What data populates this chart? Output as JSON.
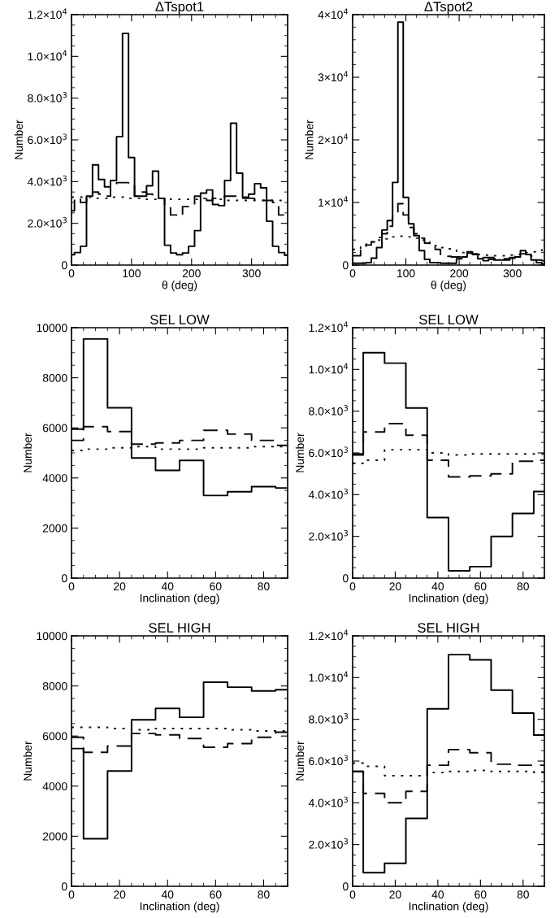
{
  "chart_data": [
    {
      "type": "histogram",
      "title": "ΔTspot1",
      "xlabel": "θ (deg)",
      "ylabel": "Number",
      "bins": [
        0,
        5,
        15,
        25,
        35,
        45,
        55,
        65,
        75,
        85,
        95,
        105,
        115,
        125,
        135,
        145,
        155,
        165,
        175,
        185,
        195,
        205,
        215,
        225,
        235,
        245,
        255,
        265,
        275,
        285,
        295,
        305,
        315,
        325,
        335,
        345,
        355,
        360
      ],
      "series": [
        {
          "color": "#000000",
          "line_style": "solid",
          "values": [
            500,
            600,
            900,
            3300,
            4800,
            4100,
            3750,
            4050,
            6150,
            11100,
            5150,
            3300,
            3300,
            3800,
            4500,
            3200,
            950,
            580,
            500,
            580,
            900,
            1650,
            3450,
            3600,
            2900,
            2850,
            4050,
            6800,
            4400,
            3250,
            3400,
            3900,
            3700,
            2100,
            900,
            600,
            470
          ]
        },
        {
          "color": "#0a0a0a",
          "line_style": "dashed",
          "values": [
            2600,
            3200,
            3000,
            3300,
            3500,
            3400,
            3300,
            3900,
            3950,
            3950,
            3900,
            3300,
            3500,
            3400,
            3300,
            3200,
            2900,
            2400,
            2350,
            2800,
            2900,
            3300,
            3300,
            3100,
            3200,
            3200,
            3300,
            3300,
            3200,
            3200,
            3200,
            3100,
            3100,
            3100,
            3000,
            2400,
            2300
          ]
        },
        {
          "color": "#141414",
          "line_style": "dotted",
          "values": [
            3250,
            3250,
            3250,
            3250,
            3200,
            3200,
            3200,
            3250,
            3250,
            3250,
            3200,
            3200,
            3200,
            3150,
            3150,
            3200,
            3200,
            3150,
            3150,
            3150,
            3150,
            3150,
            3200,
            3200,
            3150,
            3150,
            3100,
            3100,
            3100,
            3100,
            3100,
            3100,
            3100,
            3100,
            3100,
            3100,
            3100
          ]
        }
      ],
      "xlim": [
        0,
        360
      ],
      "xticks": [
        0,
        100,
        200,
        300
      ],
      "ylim": [
        0,
        12000
      ],
      "yticks": [
        0,
        {
          "value": 2000,
          "label": "2.0×10$^{3}$"
        },
        {
          "value": 4000,
          "label": "4.0×10$^{3}$"
        },
        {
          "value": 6000,
          "label": "6.0×10$^{3}$"
        },
        {
          "value": 8000,
          "label": "8.0×10$^{3}$"
        },
        {
          "value": 10000,
          "label": "1.0×10$^{4}$"
        },
        {
          "value": 12000,
          "label": "1.2×10$^{4}$"
        }
      ]
    },
    {
      "type": "histogram",
      "title": "ΔTspot2",
      "xlabel": "θ (deg)",
      "ylabel": "Number",
      "bins": [
        0,
        5,
        15,
        25,
        35,
        45,
        55,
        65,
        75,
        85,
        95,
        105,
        115,
        125,
        135,
        145,
        155,
        165,
        175,
        185,
        195,
        205,
        215,
        225,
        235,
        245,
        255,
        265,
        275,
        285,
        295,
        305,
        315,
        325,
        335,
        345,
        355,
        360
      ],
      "series": [
        {
          "color": "#000000",
          "line_style": "solid",
          "values": [
            300,
            300,
            300,
            400,
            1100,
            2800,
            5600,
            7100,
            13200,
            38800,
            10800,
            6600,
            4700,
            2300,
            900,
            400,
            400,
            300,
            300,
            300,
            1000,
            1300,
            2100,
            1700,
            1000,
            700,
            900,
            800,
            800,
            800,
            1100,
            1300,
            2300,
            1700,
            800,
            400,
            200
          ]
        },
        {
          "color": "#0a0a0a",
          "line_style": "dashed",
          "values": [
            1500,
            1500,
            2500,
            3200,
            3700,
            4400,
            5000,
            6200,
            8300,
            9800,
            8000,
            6000,
            5000,
            4300,
            3500,
            2900,
            2500,
            1500,
            1400,
            1300,
            1300,
            1600,
            1900,
            1800,
            1500,
            1200,
            1200,
            1000,
            1000,
            1000,
            1200,
            1400,
            1800,
            1700,
            1400,
            800,
            700
          ]
        },
        {
          "color": "#141414",
          "line_style": "dotted",
          "values": [
            2500,
            2600,
            2900,
            3300,
            3700,
            4000,
            4200,
            4400,
            4500,
            4600,
            4500,
            4500,
            4300,
            4000,
            3700,
            3400,
            3100,
            2800,
            2600,
            2400,
            2200,
            2000,
            1900,
            1800,
            1700,
            1600,
            1500,
            1500,
            1500,
            1500,
            1600,
            1700,
            1800,
            2000,
            2100,
            2300,
            2400
          ]
        }
      ],
      "xlim": [
        0,
        360
      ],
      "xticks": [
        0,
        100,
        200,
        300
      ],
      "ylim": [
        0,
        40000
      ],
      "yticks": [
        0,
        {
          "value": 10000,
          "label": "1×10$^{4}$"
        },
        {
          "value": 20000,
          "label": "2×10$^{4}$"
        },
        {
          "value": 30000,
          "label": "3×10$^{4}$"
        },
        {
          "value": 40000,
          "label": "4×10$^{4}$"
        }
      ]
    },
    {
      "type": "histogram",
      "title": "SEL LOW",
      "xlabel": "Inclination (deg)",
      "ylabel": "Number",
      "bins": [
        0,
        5,
        15,
        25,
        35,
        45,
        55,
        65,
        75,
        85,
        90
      ],
      "series": [
        {
          "color": "#000000",
          "line_style": "solid",
          "values": [
            5950,
            9550,
            6800,
            4800,
            4300,
            4700,
            3300,
            3450,
            3650,
            3600
          ]
        },
        {
          "color": "#0a0a0a",
          "line_style": "dashed",
          "values": [
            5500,
            6050,
            5850,
            5350,
            5400,
            5500,
            5900,
            5750,
            5500,
            5300
          ]
        },
        {
          "color": "#141414",
          "line_style": "dotted",
          "values": [
            5100,
            5150,
            5200,
            5250,
            5150,
            5150,
            5200,
            5200,
            5250,
            5250
          ]
        }
      ],
      "xlim": [
        0,
        90
      ],
      "xticks": [
        0,
        20,
        40,
        60,
        80
      ],
      "ylim": [
        0,
        10000
      ],
      "yticks": [
        0,
        2000,
        4000,
        6000,
        8000,
        10000
      ]
    },
    {
      "type": "histogram",
      "title": "SEL LOW",
      "xlabel": "Inclination (deg)",
      "ylabel": "Number",
      "bins": [
        0,
        5,
        15,
        25,
        35,
        45,
        55,
        65,
        75,
        85,
        90
      ],
      "series": [
        {
          "color": "#000000",
          "line_style": "solid",
          "values": [
            5900,
            10800,
            10300,
            8150,
            2900,
            350,
            550,
            2000,
            3100,
            4150
          ]
        },
        {
          "color": "#0a0a0a",
          "line_style": "dashed",
          "values": [
            5950,
            7000,
            7400,
            6850,
            5650,
            4850,
            4900,
            5000,
            5600,
            5650
          ]
        },
        {
          "color": "#141414",
          "line_style": "dotted",
          "values": [
            5500,
            5650,
            6150,
            6150,
            6000,
            5900,
            5950,
            5950,
            5950,
            5950
          ]
        }
      ],
      "xlim": [
        0,
        90
      ],
      "xticks": [
        0,
        20,
        40,
        60,
        80
      ],
      "ylim": [
        0,
        12000
      ],
      "yticks": [
        0,
        {
          "value": 2000,
          "label": "2.0×10$^{3}$"
        },
        {
          "value": 4000,
          "label": "4.0×10$^{3}$"
        },
        {
          "value": 6000,
          "label": "6.0×10$^{3}$"
        },
        {
          "value": 8000,
          "label": "8.0×10$^{3}$"
        },
        {
          "value": 10000,
          "label": "1.0×10$^{4}$"
        },
        {
          "value": 12000,
          "label": "1.2×10$^{4}$"
        }
      ]
    },
    {
      "type": "histogram",
      "title": "SEL HIGH",
      "xlabel": "Inclination (deg)",
      "ylabel": "Number",
      "bins": [
        0,
        5,
        15,
        25,
        35,
        45,
        55,
        65,
        75,
        85,
        90
      ],
      "series": [
        {
          "color": "#000000",
          "line_style": "solid",
          "values": [
            5500,
            1900,
            4600,
            6650,
            7100,
            6750,
            8150,
            7950,
            7800,
            7850
          ]
        },
        {
          "color": "#0a0a0a",
          "line_style": "dashed",
          "values": [
            5950,
            5350,
            5600,
            6100,
            6050,
            5900,
            5550,
            5700,
            5950,
            6150
          ]
        },
        {
          "color": "#141414",
          "line_style": "dotted",
          "values": [
            6350,
            6350,
            6300,
            6250,
            6300,
            6300,
            6300,
            6250,
            6200,
            6200
          ]
        }
      ],
      "xlim": [
        0,
        90
      ],
      "xticks": [
        0,
        20,
        40,
        60,
        80
      ],
      "ylim": [
        0,
        10000
      ],
      "yticks": [
        0,
        2000,
        4000,
        6000,
        8000,
        10000
      ]
    },
    {
      "type": "histogram",
      "title": "SEL HIGH",
      "xlabel": "Inclination (deg)",
      "ylabel": "Number",
      "bins": [
        0,
        5,
        15,
        25,
        35,
        45,
        55,
        65,
        75,
        85,
        90
      ],
      "series": [
        {
          "color": "#000000",
          "line_style": "solid",
          "values": [
            5500,
            650,
            1100,
            3250,
            8500,
            11100,
            10850,
            9400,
            8300,
            7250
          ]
        },
        {
          "color": "#0a0a0a",
          "line_style": "dashed",
          "values": [
            5500,
            4450,
            4000,
            4550,
            5800,
            6550,
            6400,
            5850,
            5800,
            5800
          ]
        },
        {
          "color": "#141414",
          "line_style": "dotted",
          "values": [
            5900,
            5750,
            5300,
            5300,
            5450,
            5500,
            5550,
            5500,
            5500,
            5450
          ]
        }
      ],
      "xlim": [
        0,
        90
      ],
      "xticks": [
        0,
        20,
        40,
        60,
        80
      ],
      "ylim": [
        0,
        12000
      ],
      "yticks": [
        0,
        {
          "value": 2000,
          "label": "2.0×10$^{3}$"
        },
        {
          "value": 4000,
          "label": "4.0×10$^{3}$"
        },
        {
          "value": 6000,
          "label": "6.0×10$^{3}$"
        },
        {
          "value": 8000,
          "label": "8.0×10$^{3}$"
        },
        {
          "value": 10000,
          "label": "1.0×10$^{4}$"
        },
        {
          "value": 12000,
          "label": "1.2×10$^{4}$"
        }
      ]
    }
  ]
}
